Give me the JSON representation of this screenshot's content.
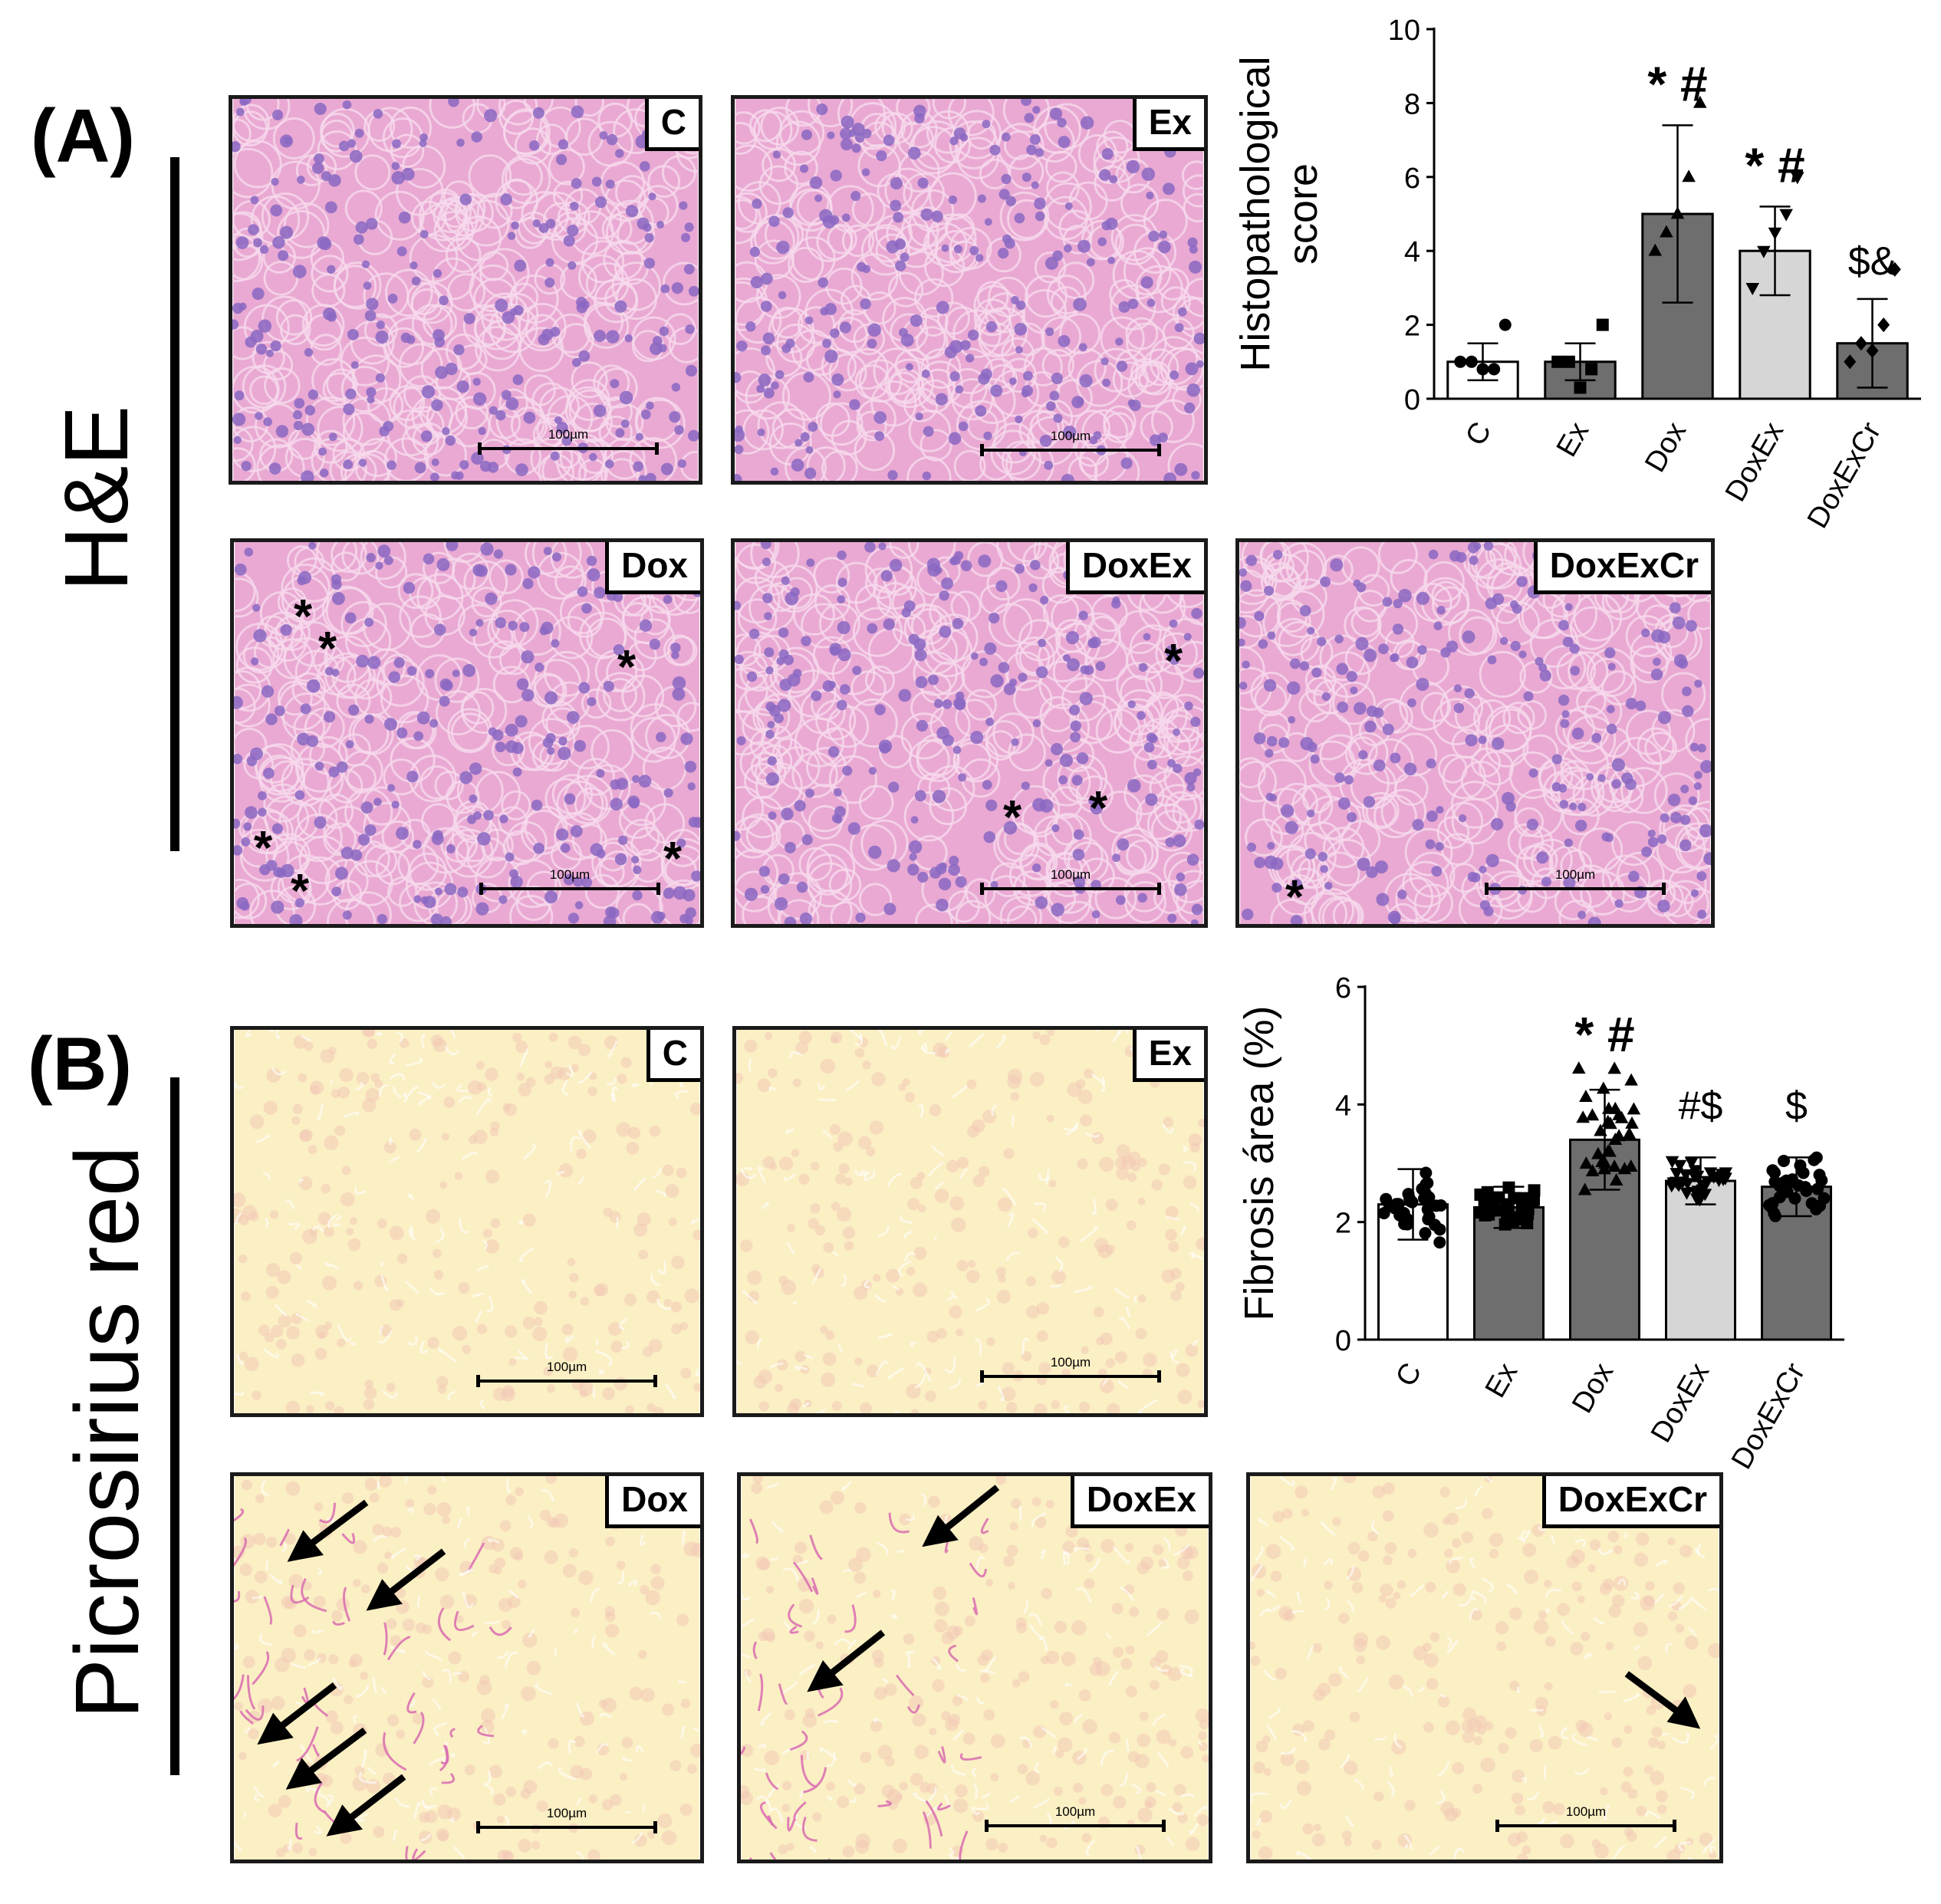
{
  "panels": {
    "a": {
      "label": "(A)",
      "stain": "H&E",
      "images": [
        {
          "tag": "C",
          "scale": "100µm"
        },
        {
          "tag": "Ex",
          "scale": "100µm"
        },
        {
          "tag": "Dox",
          "scale": "100µm"
        },
        {
          "tag": "DoxEx",
          "scale": "100µm"
        },
        {
          "tag": "DoxExCr",
          "scale": "100µm"
        }
      ],
      "annotations": {
        "marker": "*"
      }
    },
    "b": {
      "label": "(B)",
      "stain": "Picrosirius red",
      "images": [
        {
          "tag": "C",
          "scale": "100µm"
        },
        {
          "tag": "Ex",
          "scale": "100µm"
        },
        {
          "tag": "Dox",
          "scale": "100µm"
        },
        {
          "tag": "DoxEx",
          "scale": "100µm"
        },
        {
          "tag": "DoxExCr",
          "scale": "100µm"
        }
      ]
    }
  },
  "colors": {
    "he_bg": "#e9a9d3",
    "he_nucleus": "#8a67c2",
    "psr_bg": "#fbefc4",
    "psr_fiber": "#d86bb0",
    "bar_white": "#ffffff",
    "bar_dark": "#6e6e6e",
    "bar_light": "#d6d6d6"
  },
  "chart_data": [
    {
      "type": "bar",
      "ylabel": "Histopathological score",
      "categories": [
        "C",
        "Ex",
        "Dox",
        "DoxEx",
        "DoxExCr"
      ],
      "values": [
        1.0,
        1.0,
        5.0,
        4.0,
        1.5
      ],
      "errors": [
        0.5,
        0.5,
        2.4,
        1.2,
        1.2
      ],
      "significance": [
        "",
        "",
        "* #",
        "* #",
        "$&"
      ],
      "points": [
        [
          1.0,
          1.0,
          0.8,
          0.8,
          2.0
        ],
        [
          1.0,
          1.0,
          0.3,
          0.8,
          2.0
        ],
        [
          4.0,
          4.5,
          5.0,
          6.0,
          8.0
        ],
        [
          3.0,
          4.0,
          4.5,
          5.0,
          6.0
        ],
        [
          1.0,
          1.5,
          1.3,
          2.0,
          3.5
        ]
      ],
      "markers": [
        "circle",
        "square",
        "triangle",
        "triangle-down",
        "diamond"
      ],
      "bar_colors": [
        "#ffffff",
        "#6e6e6e",
        "#6e6e6e",
        "#d6d6d6",
        "#6e6e6e"
      ],
      "ylim": [
        0,
        10
      ],
      "yticks": [
        0,
        2,
        4,
        6,
        8,
        10
      ]
    },
    {
      "type": "bar",
      "ylabel": "Fibrosis área (%)",
      "categories": [
        "C",
        "Ex",
        "Dox",
        "DoxEx",
        "DoxExCr"
      ],
      "values": [
        2.3,
        2.25,
        3.4,
        2.7,
        2.6
      ],
      "errors": [
        0.6,
        0.35,
        0.85,
        0.4,
        0.5
      ],
      "significance": [
        "",
        "",
        "* #",
        "#$",
        "$"
      ],
      "markers": [
        "circle",
        "square",
        "triangle",
        "triangle-down",
        "circle"
      ],
      "bar_colors": [
        "#ffffff",
        "#6e6e6e",
        "#6e6e6e",
        "#d6d6d6",
        "#6e6e6e"
      ],
      "ylim": [
        0,
        6
      ],
      "yticks": [
        0,
        2,
        4,
        6
      ],
      "n_points": 32
    }
  ]
}
